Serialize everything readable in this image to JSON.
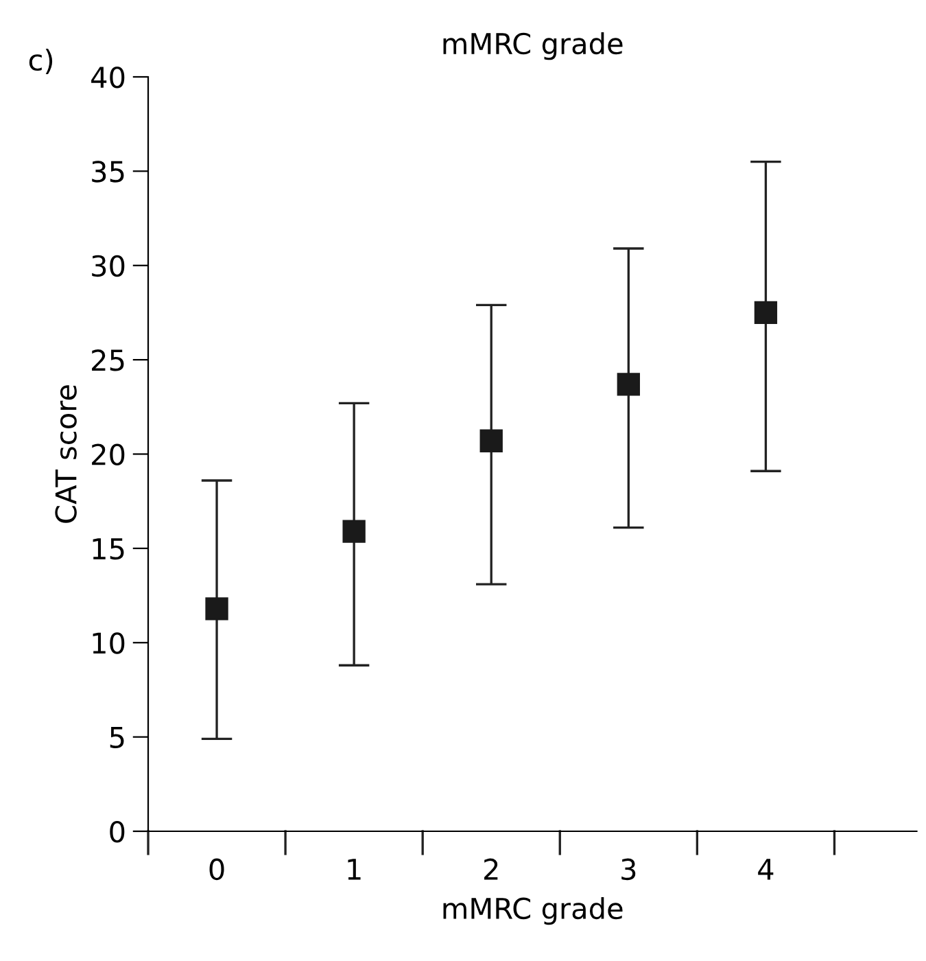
{
  "chart_data": {
    "type": "scatter",
    "title": "mMRC grade",
    "xlabel": "mMRC grade",
    "ylabel": "CAT score",
    "annotations": [
      "c)"
    ],
    "categories": [
      "0",
      "1",
      "2",
      "3",
      "4"
    ],
    "series": [
      {
        "color": "#1a1a1a",
        "values": [
          11.8,
          15.9,
          20.7,
          23.7,
          27.5
        ],
        "errors": [
          [
            4.9,
            18.6
          ],
          [
            8.8,
            22.7
          ],
          [
            13.1,
            27.9
          ],
          [
            16.1,
            30.9
          ],
          [
            19.1,
            35.5
          ]
        ]
      }
    ],
    "ylim": [
      0,
      40
    ],
    "yticks": [
      0,
      5,
      10,
      15,
      20,
      25,
      30,
      35,
      40
    ],
    "marker": "square",
    "grid": false,
    "legend": false
  }
}
